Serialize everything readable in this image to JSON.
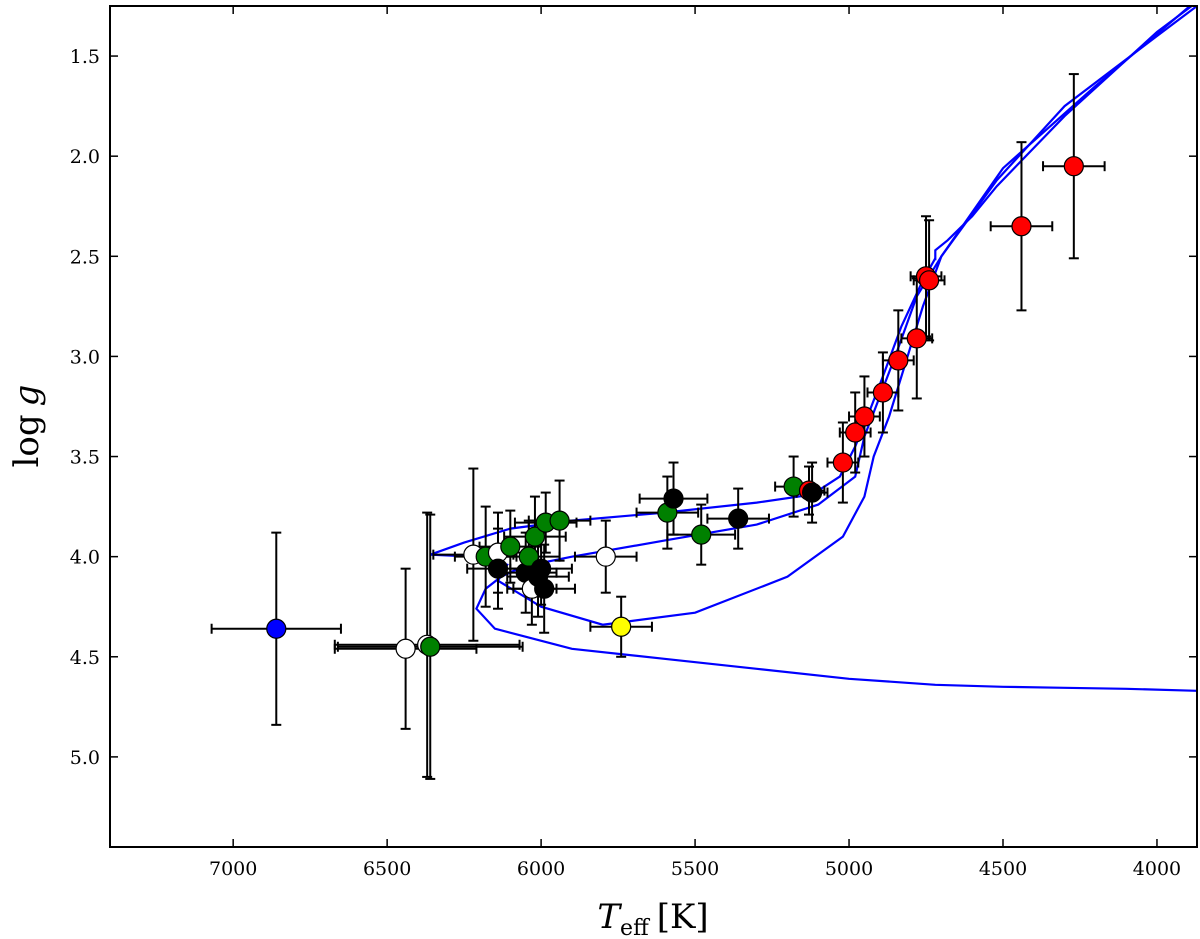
{
  "chart_data": {
    "type": "scatter",
    "title": "",
    "xlabel_main": "T",
    "xlabel_sub": "eff",
    "xlabel_unit": "[K]",
    "ylabel_main": "log",
    "ylabel_var": "g",
    "xlim": [
      7400,
      3870
    ],
    "ylim": [
      5.45,
      1.25
    ],
    "xticks": [
      7000,
      6500,
      6000,
      5500,
      5000,
      4500,
      4000
    ],
    "xtick_labels": [
      "7000",
      "6500",
      "6000",
      "5500",
      "5000",
      "4500",
      "4000"
    ],
    "yticks": [
      1.5,
      2.0,
      2.5,
      3.0,
      3.5,
      4.0,
      4.5,
      5.0
    ],
    "ytick_labels": [
      "1.5",
      "2.0",
      "2.5",
      "3.0",
      "3.5",
      "4.0",
      "4.5",
      "5.0"
    ],
    "isochrones": [
      {
        "name": "isochrone-1",
        "color": "#0000ff",
        "points": [
          [
            3870,
            4.67
          ],
          [
            4100,
            4.66
          ],
          [
            4300,
            4.655
          ],
          [
            4500,
            4.65
          ],
          [
            4720,
            4.64
          ],
          [
            5000,
            4.61
          ],
          [
            5300,
            4.56
          ],
          [
            5600,
            4.51
          ],
          [
            5900,
            4.46
          ],
          [
            6150,
            4.36
          ],
          [
            6210,
            4.26
          ],
          [
            6180,
            4.16
          ],
          [
            6130,
            4.1
          ],
          [
            6060,
            4.05
          ],
          [
            5900,
            4.0
          ],
          [
            5600,
            3.92
          ],
          [
            5300,
            3.84
          ],
          [
            5100,
            3.74
          ],
          [
            4980,
            3.6
          ],
          [
            4950,
            3.4
          ],
          [
            4900,
            3.2
          ],
          [
            4850,
            3.0
          ],
          [
            4780,
            2.7
          ],
          [
            4700,
            2.5
          ],
          [
            4500,
            2.06
          ],
          [
            4200,
            1.65
          ],
          [
            3870,
            1.22
          ]
        ]
      },
      {
        "name": "isochrone-2",
        "color": "#0000ff",
        "points": [
          [
            6360,
            3.99
          ],
          [
            6220,
            4.0
          ],
          [
            6150,
            4.02
          ],
          [
            6110,
            4.04
          ],
          [
            6140,
            4.12
          ],
          [
            6000,
            4.25
          ],
          [
            5800,
            4.34
          ],
          [
            5500,
            4.28
          ],
          [
            5200,
            4.1
          ],
          [
            5020,
            3.9
          ],
          [
            4950,
            3.7
          ],
          [
            4920,
            3.5
          ],
          [
            4870,
            3.3
          ],
          [
            4820,
            3.05
          ],
          [
            4760,
            2.75
          ],
          [
            4700,
            2.5
          ],
          [
            4520,
            2.12
          ],
          [
            4300,
            1.75
          ],
          [
            4000,
            1.4
          ],
          [
            3870,
            1.25
          ]
        ]
      },
      {
        "name": "isochrone-3",
        "color": "#0000ff",
        "points": [
          [
            6360,
            3.99
          ],
          [
            6250,
            3.93
          ],
          [
            6100,
            3.86
          ],
          [
            5900,
            3.82
          ],
          [
            5600,
            3.78
          ],
          [
            5300,
            3.73
          ],
          [
            5120,
            3.69
          ],
          [
            5030,
            3.6
          ],
          [
            4980,
            3.45
          ],
          [
            4940,
            3.3
          ],
          [
            4890,
            3.1
          ],
          [
            4830,
            2.85
          ],
          [
            4760,
            2.62
          ],
          [
            4720,
            2.51
          ]
        ]
      },
      {
        "name": "isochrone-clump",
        "color": "#0000ff",
        "points": [
          [
            4720,
            2.52
          ],
          [
            4720,
            2.47
          ],
          [
            4680,
            2.42
          ],
          [
            4600,
            2.3
          ],
          [
            4520,
            2.15
          ],
          [
            4300,
            1.8
          ],
          [
            4000,
            1.38
          ],
          [
            3870,
            1.23
          ]
        ]
      }
    ],
    "points": [
      {
        "teff": 6860,
        "logg": 4.36,
        "xerr": 210,
        "yerr": 0.48,
        "color": "#0000ff"
      },
      {
        "teff": 6440,
        "logg": 4.46,
        "xerr": 230,
        "yerr": 0.4,
        "color": "#ffffff"
      },
      {
        "teff": 6370,
        "logg": 4.44,
        "xerr": 300,
        "yerr": 0.66,
        "color": "#ffffff"
      },
      {
        "teff": 6360,
        "logg": 4.45,
        "xerr": 300,
        "yerr": 0.66,
        "color": "#008000"
      },
      {
        "teff": 6220,
        "logg": 3.99,
        "xerr": 130,
        "yerr": 0.43,
        "color": "#ffffff"
      },
      {
        "teff": 6180,
        "logg": 4.0,
        "xerr": 100,
        "yerr": 0.25,
        "color": "#008000"
      },
      {
        "teff": 6140,
        "logg": 3.98,
        "xerr": 100,
        "yerr": 0.2,
        "color": "#ffffff"
      },
      {
        "teff": 6140,
        "logg": 4.06,
        "xerr": 100,
        "yerr": 0.2,
        "color": "#000000"
      },
      {
        "teff": 6100,
        "logg": 3.95,
        "xerr": 100,
        "yerr": 0.18,
        "color": "#008000"
      },
      {
        "teff": 6050,
        "logg": 4.08,
        "xerr": 100,
        "yerr": 0.2,
        "color": "#000000"
      },
      {
        "teff": 6040,
        "logg": 4.0,
        "xerr": 100,
        "yerr": 0.18,
        "color": "#008000"
      },
      {
        "teff": 6030,
        "logg": 4.16,
        "xerr": 80,
        "yerr": 0.18,
        "color": "#ffffff"
      },
      {
        "teff": 6020,
        "logg": 3.9,
        "xerr": 100,
        "yerr": 0.2,
        "color": "#008000"
      },
      {
        "teff": 6010,
        "logg": 4.1,
        "xerr": 100,
        "yerr": 0.2,
        "color": "#000000"
      },
      {
        "teff": 6000,
        "logg": 4.06,
        "xerr": 100,
        "yerr": 0.18,
        "color": "#000000"
      },
      {
        "teff": 5990,
        "logg": 4.16,
        "xerr": 100,
        "yerr": 0.22,
        "color": "#000000"
      },
      {
        "teff": 5985,
        "logg": 3.83,
        "xerr": 100,
        "yerr": 0.15,
        "color": "#008000"
      },
      {
        "teff": 5940,
        "logg": 3.82,
        "xerr": 100,
        "yerr": 0.2,
        "color": "#008000"
      },
      {
        "teff": 5790,
        "logg": 4.0,
        "xerr": 100,
        "yerr": 0.18,
        "color": "#ffffff"
      },
      {
        "teff": 5740,
        "logg": 4.35,
        "xerr": 100,
        "yerr": 0.15,
        "color": "#ffff00"
      },
      {
        "teff": 5590,
        "logg": 3.78,
        "xerr": 100,
        "yerr": 0.18,
        "color": "#008000"
      },
      {
        "teff": 5570,
        "logg": 3.71,
        "xerr": 110,
        "yerr": 0.18,
        "color": "#000000"
      },
      {
        "teff": 5480,
        "logg": 3.89,
        "xerr": 110,
        "yerr": 0.15,
        "color": "#008000"
      },
      {
        "teff": 5360,
        "logg": 3.81,
        "xerr": 100,
        "yerr": 0.15,
        "color": "#000000"
      },
      {
        "teff": 5180,
        "logg": 3.65,
        "xerr": 60,
        "yerr": 0.15,
        "color": "#008000"
      },
      {
        "teff": 5130,
        "logg": 3.67,
        "xerr": 50,
        "yerr": 0.12,
        "color": "#ff0000"
      },
      {
        "teff": 5120,
        "logg": 3.68,
        "xerr": 50,
        "yerr": 0.15,
        "color": "#000000"
      },
      {
        "teff": 5020,
        "logg": 3.53,
        "xerr": 50,
        "yerr": 0.2,
        "color": "#ff0000"
      },
      {
        "teff": 4980,
        "logg": 3.38,
        "xerr": 50,
        "yerr": 0.2,
        "color": "#ff0000"
      },
      {
        "teff": 4950,
        "logg": 3.3,
        "xerr": 50,
        "yerr": 0.2,
        "color": "#ff0000"
      },
      {
        "teff": 4890,
        "logg": 3.18,
        "xerr": 50,
        "yerr": 0.2,
        "color": "#ff0000"
      },
      {
        "teff": 4840,
        "logg": 3.02,
        "xerr": 50,
        "yerr": 0.25,
        "color": "#ff0000"
      },
      {
        "teff": 4780,
        "logg": 2.91,
        "xerr": 50,
        "yerr": 0.3,
        "color": "#ff0000"
      },
      {
        "teff": 4750,
        "logg": 2.6,
        "xerr": 50,
        "yerr": 0.3,
        "color": "#ff0000"
      },
      {
        "teff": 4740,
        "logg": 2.62,
        "xerr": 50,
        "yerr": 0.3,
        "color": "#ff0000"
      },
      {
        "teff": 4440,
        "logg": 2.35,
        "xerr": 100,
        "yerr": 0.42,
        "color": "#ff0000"
      },
      {
        "teff": 4270,
        "logg": 2.05,
        "xerr": 100,
        "yerr": 0.46,
        "color": "#ff0000"
      }
    ]
  }
}
